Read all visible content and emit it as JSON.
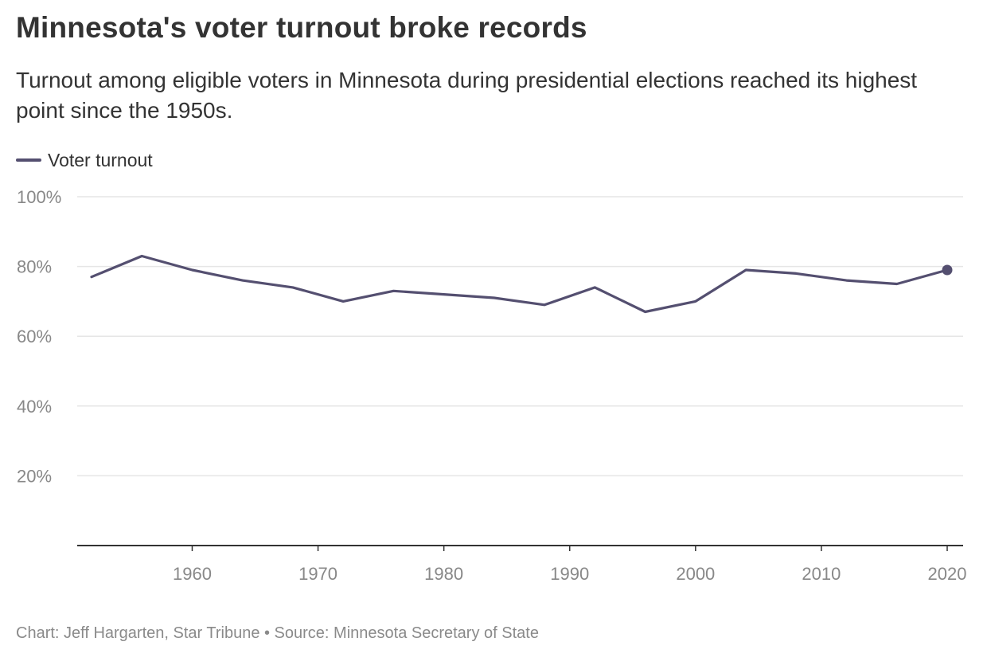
{
  "title": "Minnesota's voter turnout broke records",
  "subtitle": "Turnout among eligible voters in Minnesota during presidential elections reached its highest point since the 1950s.",
  "source": "Chart: Jeff Hargarten, Star Tribune • Source: Minnesota Secretary of State",
  "colors": {
    "line": "#544f70",
    "grid": "#e6e6e6",
    "axis": "#333333",
    "tick_text": "#888888"
  },
  "chart_data": {
    "type": "line",
    "legend": {
      "placement": "top-left",
      "entries": [
        "Voter turnout"
      ]
    },
    "grid": true,
    "xlim": [
      1952,
      2020
    ],
    "ylim": [
      0,
      100
    ],
    "x_ticks": [
      1960,
      1970,
      1980,
      1990,
      2000,
      2010,
      2020
    ],
    "y_ticks": [
      20,
      40,
      60,
      80,
      100
    ],
    "y_tick_labels": [
      "20%",
      "40%",
      "60%",
      "80%",
      "100%"
    ],
    "highlight_last_point": true,
    "series": [
      {
        "name": "Voter turnout",
        "x": [
          1952,
          1956,
          1960,
          1964,
          1968,
          1972,
          1976,
          1980,
          1984,
          1988,
          1992,
          1996,
          2000,
          2004,
          2008,
          2012,
          2016,
          2020
        ],
        "y": [
          77,
          83,
          79,
          76,
          74,
          70,
          73,
          72,
          71,
          69,
          74,
          67,
          70,
          79,
          78,
          76,
          75,
          79
        ]
      }
    ]
  }
}
